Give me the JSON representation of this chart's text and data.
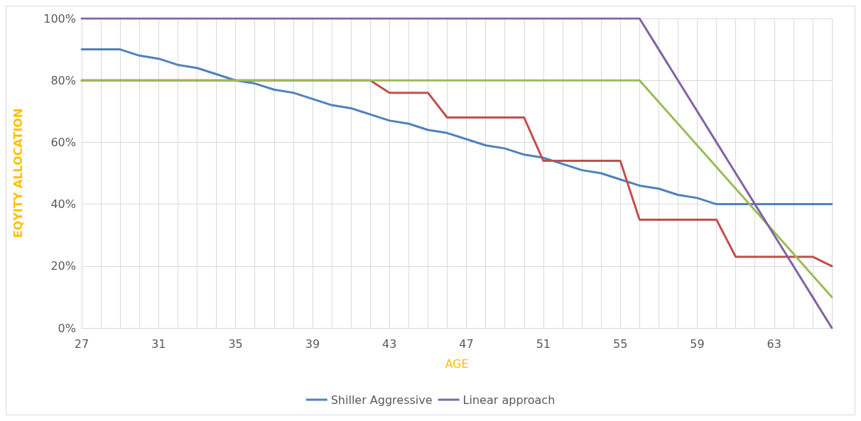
{
  "chart_data": {
    "type": "line",
    "xlabel": "AGE",
    "ylabel": "EQYITY ALLOCATION",
    "categories": [
      "27",
      null,
      null,
      null,
      "31",
      null,
      null,
      null,
      "35",
      null,
      null,
      null,
      "39",
      null,
      null,
      null,
      "43",
      null,
      null,
      null,
      "47",
      null,
      null,
      null,
      "51",
      null,
      null,
      null,
      "55",
      null,
      null,
      null,
      "59",
      null,
      null,
      null,
      "63",
      null,
      null,
      null
    ],
    "series": [
      {
        "name": "Shiller Aggressive",
        "color": "#4f81bd",
        "values": [
          90,
          90,
          90,
          88,
          87,
          85,
          84,
          82,
          80,
          79,
          77,
          76,
          74,
          72,
          71,
          69,
          67,
          66,
          64,
          63,
          61,
          59,
          58,
          56,
          55,
          53,
          51,
          50,
          48,
          46,
          45,
          43,
          42,
          40,
          40,
          40,
          40,
          40,
          40,
          40
        ]
      },
      {
        "color": "#c0504d",
        "values": [
          80,
          80,
          80,
          80,
          80,
          80,
          80,
          80,
          80,
          80,
          80,
          80,
          80,
          80,
          80,
          80,
          76,
          76,
          76,
          68,
          68,
          68,
          68,
          68,
          54,
          54,
          54,
          54,
          54,
          35,
          35,
          35,
          35,
          35,
          23,
          23,
          23,
          23,
          23,
          20
        ]
      },
      {
        "color": "#9bbb59",
        "values": [
          80,
          80,
          80,
          80,
          80,
          80,
          80,
          80,
          80,
          80,
          80,
          80,
          80,
          80,
          80,
          80,
          80,
          80,
          80,
          80,
          80,
          80,
          80,
          80,
          80,
          80,
          80,
          80,
          80,
          80,
          73,
          66,
          59,
          52,
          45,
          38,
          31,
          24,
          17,
          10
        ]
      },
      {
        "name": "Linear approach",
        "color": "#8064a2",
        "values": [
          100,
          100,
          100,
          100,
          100,
          100,
          100,
          100,
          100,
          100,
          100,
          100,
          100,
          100,
          100,
          100,
          100,
          100,
          100,
          100,
          100,
          100,
          100,
          100,
          100,
          100,
          100,
          100,
          100,
          100,
          90,
          80,
          70,
          60,
          50,
          40,
          30,
          20,
          10,
          0
        ]
      }
    ],
    "ylim": [
      0,
      100
    ],
    "yticks": [
      {
        "value": 0,
        "label": "0%"
      },
      {
        "value": 20,
        "label": "20%"
      },
      {
        "value": 40,
        "label": "40%"
      },
      {
        "value": 60,
        "label": "60%"
      },
      {
        "value": 80,
        "label": "80%"
      },
      {
        "value": 100,
        "label": "100%"
      }
    ],
    "grid": true,
    "legend": "bottom",
    "marker": "none",
    "line_style": "solid"
  }
}
